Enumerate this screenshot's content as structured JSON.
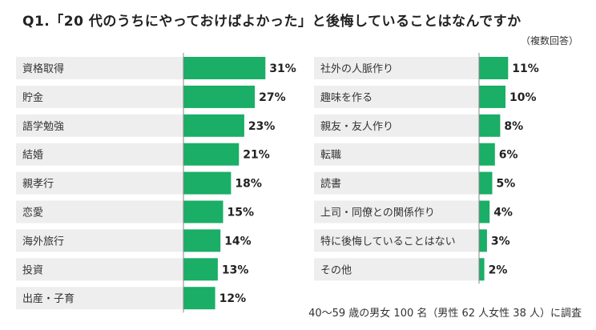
{
  "title": "Q1.「20 代のうちにやっておけばよかった」と後悔していることはなんですか",
  "subtitle": "（複数回答）",
  "note": "40～59 歳の男女 100 名（男性 62 人女性 38 人）に調査",
  "colors": {
    "bar": "#1aae66",
    "row_bg": "#eeeeee",
    "axis": "#888888"
  },
  "chart_data": [
    {
      "type": "bar",
      "orientation": "horizontal",
      "categories": [
        "資格取得",
        "貯金",
        "語学勉強",
        "結婚",
        "親孝行",
        "恋愛",
        "海外旅行",
        "投資",
        "出産・子育"
      ],
      "values": [
        31,
        27,
        23,
        21,
        18,
        15,
        14,
        13,
        12
      ],
      "value_labels": [
        "31%",
        "27%",
        "23%",
        "21%",
        "18%",
        "15%",
        "14%",
        "13%",
        "12%"
      ],
      "unit": "%"
    },
    {
      "type": "bar",
      "orientation": "horizontal",
      "categories": [
        "社外の人脈作り",
        "趣味を作る",
        "親友・友人作り",
        "転職",
        "読書",
        "上司・同僚との関係作り",
        "特に後悔していることはない",
        "その他"
      ],
      "values": [
        11,
        10,
        8,
        6,
        5,
        4,
        3,
        2
      ],
      "value_labels": [
        "11%",
        "10%",
        "8%",
        "6%",
        "5%",
        "4%",
        "3%",
        "2%"
      ],
      "unit": "%"
    }
  ]
}
